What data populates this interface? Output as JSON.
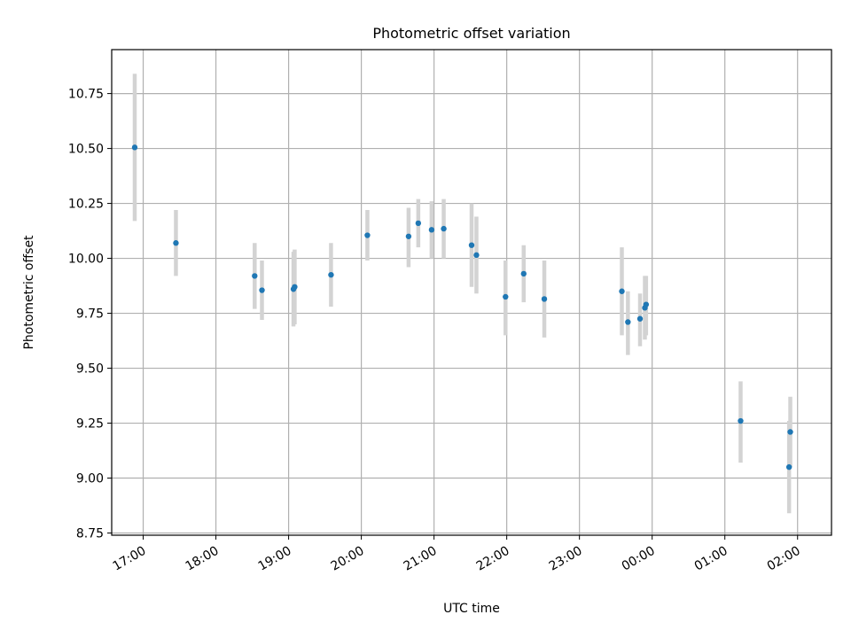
{
  "chart_data": {
    "type": "scatter",
    "title": "Photometric offset variation",
    "xlabel": "UTC time",
    "ylabel": "Photometric offset",
    "x_is_time": true,
    "x_ticks": [
      "17:00",
      "18:00",
      "19:00",
      "20:00",
      "21:00",
      "22:00",
      "23:00",
      "00:00",
      "01:00",
      "02:00"
    ],
    "x_tick_hours": [
      17,
      18,
      19,
      20,
      21,
      22,
      23,
      24,
      25,
      26
    ],
    "xlim": [
      "16:34",
      "02:28"
    ],
    "y_ticks": [
      "8.75",
      "9.00",
      "9.25",
      "9.50",
      "9.75",
      "10.00",
      "10.25",
      "10.50",
      "10.75"
    ],
    "ylim": [
      8.74,
      10.95
    ],
    "grid": true,
    "colors": {
      "point": "#1f77b4",
      "errorbar": "#d3d3d3",
      "grid": "#b0b0b0"
    },
    "points": [
      {
        "t": "16:53",
        "y": 10.505,
        "lo": 10.17,
        "hi": 10.84
      },
      {
        "t": "17:27",
        "y": 10.07,
        "lo": 9.92,
        "hi": 10.22
      },
      {
        "t": "18:32",
        "y": 9.92,
        "lo": 9.77,
        "hi": 10.07
      },
      {
        "t": "18:38",
        "y": 9.855,
        "lo": 9.72,
        "hi": 9.99
      },
      {
        "t": "19:04",
        "y": 9.86,
        "lo": 9.69,
        "hi": 10.03
      },
      {
        "t": "19:05",
        "y": 9.87,
        "lo": 9.7,
        "hi": 10.04
      },
      {
        "t": "19:35",
        "y": 9.925,
        "lo": 9.78,
        "hi": 10.07
      },
      {
        "t": "20:05",
        "y": 10.105,
        "lo": 9.99,
        "hi": 10.22
      },
      {
        "t": "20:39",
        "y": 10.1,
        "lo": 9.96,
        "hi": 10.23
      },
      {
        "t": "20:47",
        "y": 10.16,
        "lo": 10.05,
        "hi": 10.27
      },
      {
        "t": "20:58",
        "y": 10.13,
        "lo": 10.0,
        "hi": 10.26
      },
      {
        "t": "21:08",
        "y": 10.135,
        "lo": 10.0,
        "hi": 10.27
      },
      {
        "t": "21:31",
        "y": 10.06,
        "lo": 9.87,
        "hi": 10.25
      },
      {
        "t": "21:35",
        "y": 10.015,
        "lo": 9.84,
        "hi": 10.19
      },
      {
        "t": "21:59",
        "y": 9.825,
        "lo": 9.65,
        "hi": 9.99
      },
      {
        "t": "22:14",
        "y": 9.93,
        "lo": 9.8,
        "hi": 10.06
      },
      {
        "t": "22:31",
        "y": 9.815,
        "lo": 9.64,
        "hi": 9.99
      },
      {
        "t": "23:35",
        "y": 9.85,
        "lo": 9.65,
        "hi": 10.05
      },
      {
        "t": "23:40",
        "y": 9.71,
        "lo": 9.56,
        "hi": 9.85
      },
      {
        "t": "23:50",
        "y": 9.725,
        "lo": 9.6,
        "hi": 9.84
      },
      {
        "t": "23:54",
        "y": 9.775,
        "lo": 9.63,
        "hi": 9.92
      },
      {
        "t": "23:55",
        "y": 9.79,
        "lo": 9.65,
        "hi": 9.92
      },
      {
        "t": "01:13",
        "y": 9.26,
        "lo": 9.07,
        "hi": 9.44
      },
      {
        "t": "01:53",
        "y": 9.05,
        "lo": 8.84,
        "hi": 9.26
      },
      {
        "t": "01:54",
        "y": 9.21,
        "lo": 9.05,
        "hi": 9.37
      }
    ]
  }
}
